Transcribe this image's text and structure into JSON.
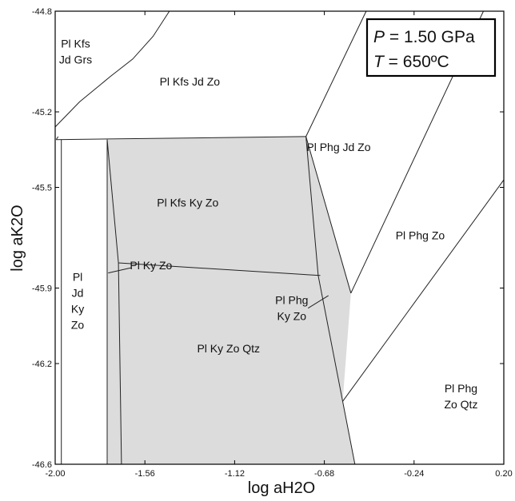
{
  "x_axis": {
    "title": "log aH2O",
    "min": -2.0,
    "max": 0.2,
    "ticks": [
      -2.0,
      -1.56,
      -1.12,
      -0.68,
      -0.24,
      0.2
    ],
    "tick_labels": [
      "-2.00",
      "-1.56",
      "-1.12",
      "-0.68",
      "-0.24",
      "0.20"
    ]
  },
  "y_axis": {
    "title": "log aK2O",
    "min": -46.6,
    "max": -44.8,
    "ticks": [
      -44.8,
      -45.2,
      -45.5,
      -45.9,
      -46.2,
      -46.6
    ],
    "tick_labels": [
      "-44.8",
      "-45.2",
      "-45.5",
      "-45.9",
      "-46.2",
      "-46.6"
    ]
  },
  "conditions": {
    "p_symbol": "P",
    "p_value": " = 1.50 GPa",
    "t_symbol": "T",
    "t_value": " = 650ºC"
  },
  "fields": [
    {
      "id": "pl-kfs-jd-grs",
      "lines": [
        "Pl Kfs",
        "Jd Grs"
      ],
      "x": -1.9,
      "y": -44.96
    },
    {
      "id": "pl-kfs-jd-zo",
      "lines": [
        "Pl Kfs Jd Zo"
      ],
      "x": -1.34,
      "y": -45.08
    },
    {
      "id": "pl-phg-jd-zo",
      "lines": [
        "Pl Phg Jd Zo"
      ],
      "x": -0.61,
      "y": -45.34
    },
    {
      "id": "pl-kfs-ky-zo",
      "lines": [
        "Pl Kfs Ky Zo"
      ],
      "x": -1.35,
      "y": -45.56
    },
    {
      "id": "pl-phg-zo",
      "lines": [
        "Pl Phg Zo"
      ],
      "x": -0.21,
      "y": -45.69
    },
    {
      "id": "pl-ky-zo",
      "lines": [
        "Pl Ky Zo"
      ],
      "x": -1.53,
      "y": -45.81
    },
    {
      "id": "pl-jd-ky-zo",
      "lines": [
        "Pl",
        "Jd",
        "Ky",
        "Zo"
      ],
      "x": -1.89,
      "y": -45.95
    },
    {
      "id": "pl-phg-ky-zo",
      "lines": [
        "Pl Phg",
        "Ky Zo"
      ],
      "x": -0.84,
      "y": -45.98
    },
    {
      "id": "pl-ky-zo-qtz",
      "lines": [
        "Pl Ky Zo Qtz"
      ],
      "x": -1.15,
      "y": -46.14
    },
    {
      "id": "pl-phg-zo-qtz",
      "lines": [
        "Pl Phg",
        "Zo Qtz"
      ],
      "x": -0.01,
      "y": -46.33
    }
  ],
  "boundaries": [
    [
      [
        -2.0,
        -45.26
      ],
      [
        -1.88,
        -45.16
      ],
      [
        -1.73,
        -45.06
      ],
      [
        -1.62,
        -44.99
      ],
      [
        -1.52,
        -44.9
      ],
      [
        -1.44,
        -44.8
      ]
    ],
    [
      [
        -1.995,
        -45.31
      ],
      [
        -0.77,
        -45.298
      ]
    ],
    [
      [
        -0.77,
        -45.298
      ],
      [
        -0.475,
        -44.8
      ]
    ],
    [
      [
        -0.77,
        -45.298
      ],
      [
        -0.55,
        -45.92
      ]
    ],
    [
      [
        -0.55,
        -45.92
      ],
      [
        0.1,
        -44.8
      ]
    ],
    [
      [
        -0.77,
        -45.298
      ],
      [
        -0.71,
        -45.85
      ],
      [
        -0.53,
        -46.6
      ]
    ],
    [
      [
        -0.59,
        -46.35
      ],
      [
        0.2,
        -45.47
      ]
    ],
    [
      [
        -1.745,
        -45.31
      ],
      [
        -1.745,
        -46.6
      ]
    ],
    [
      [
        -1.745,
        -45.31
      ],
      [
        -1.69,
        -45.8
      ]
    ],
    [
      [
        -1.69,
        -45.8
      ],
      [
        -0.7,
        -45.85
      ]
    ],
    [
      [
        -1.69,
        -45.8
      ],
      [
        -1.675,
        -46.6
      ]
    ],
    [
      [
        -1.97,
        -45.31
      ],
      [
        -1.97,
        -46.6
      ]
    ],
    [
      [
        -1.985,
        -45.298
      ],
      [
        -1.995,
        -45.31
      ]
    ]
  ],
  "shaded_region": [
    [
      -1.745,
      -45.31
    ],
    [
      -0.77,
      -45.298
    ],
    [
      -0.55,
      -45.92
    ],
    [
      -0.59,
      -46.35
    ],
    [
      -0.53,
      -46.6
    ],
    [
      -1.745,
      -46.6
    ]
  ],
  "leaders": [
    [
      [
        -1.63,
        -45.82
      ],
      [
        -1.74,
        -45.84
      ]
    ],
    [
      [
        -0.76,
        -45.98
      ],
      [
        -0.66,
        -45.93
      ]
    ]
  ],
  "colors": {
    "shade": "#dcdcdc",
    "line": "#222222",
    "frame": "#000000"
  }
}
